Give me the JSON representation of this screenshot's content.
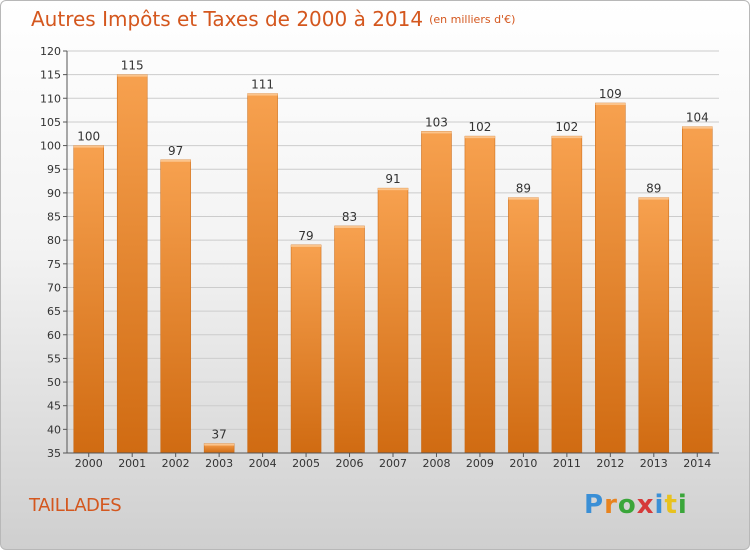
{
  "title": "Autres Impôts et Taxes de 2000 à 2014",
  "unit_note": "(en milliers d'€)",
  "commune": "TAILLADES",
  "logo": {
    "text": "Proxiti",
    "letters": [
      {
        "ch": "P",
        "color": "#3a8fd6"
      },
      {
        "ch": "r",
        "color": "#e8831e"
      },
      {
        "ch": "o",
        "color": "#3aa63a"
      },
      {
        "ch": "x",
        "color": "#d63a3a"
      },
      {
        "ch": "i",
        "color": "#3a8fd6"
      },
      {
        "ch": "t",
        "color": "#e8c21e"
      },
      {
        "ch": "i",
        "color": "#3aa63a"
      }
    ]
  },
  "colors": {
    "title": "#d4571e",
    "bar_light": "#f7a14f",
    "bar_dark": "#d06b12",
    "grid": "#cccccc",
    "axis": "#555555"
  },
  "chart_data": {
    "type": "bar",
    "title": "Autres Impôts et Taxes de 2000 à 2014",
    "subtitle": "(en milliers d'€)",
    "xlabel": "",
    "ylabel": "",
    "categories": [
      "2000",
      "2001",
      "2002",
      "2003",
      "2004",
      "2005",
      "2006",
      "2007",
      "2008",
      "2009",
      "2010",
      "2011",
      "2012",
      "2013",
      "2014"
    ],
    "values": [
      100,
      115,
      97,
      37,
      111,
      79,
      83,
      91,
      103,
      102,
      89,
      102,
      109,
      89,
      104
    ],
    "ylim": [
      35,
      120
    ],
    "yticks": [
      35,
      40,
      45,
      50,
      55,
      60,
      65,
      70,
      75,
      80,
      85,
      90,
      95,
      100,
      105,
      110,
      115,
      120
    ],
    "grid": true,
    "legend": "none"
  }
}
